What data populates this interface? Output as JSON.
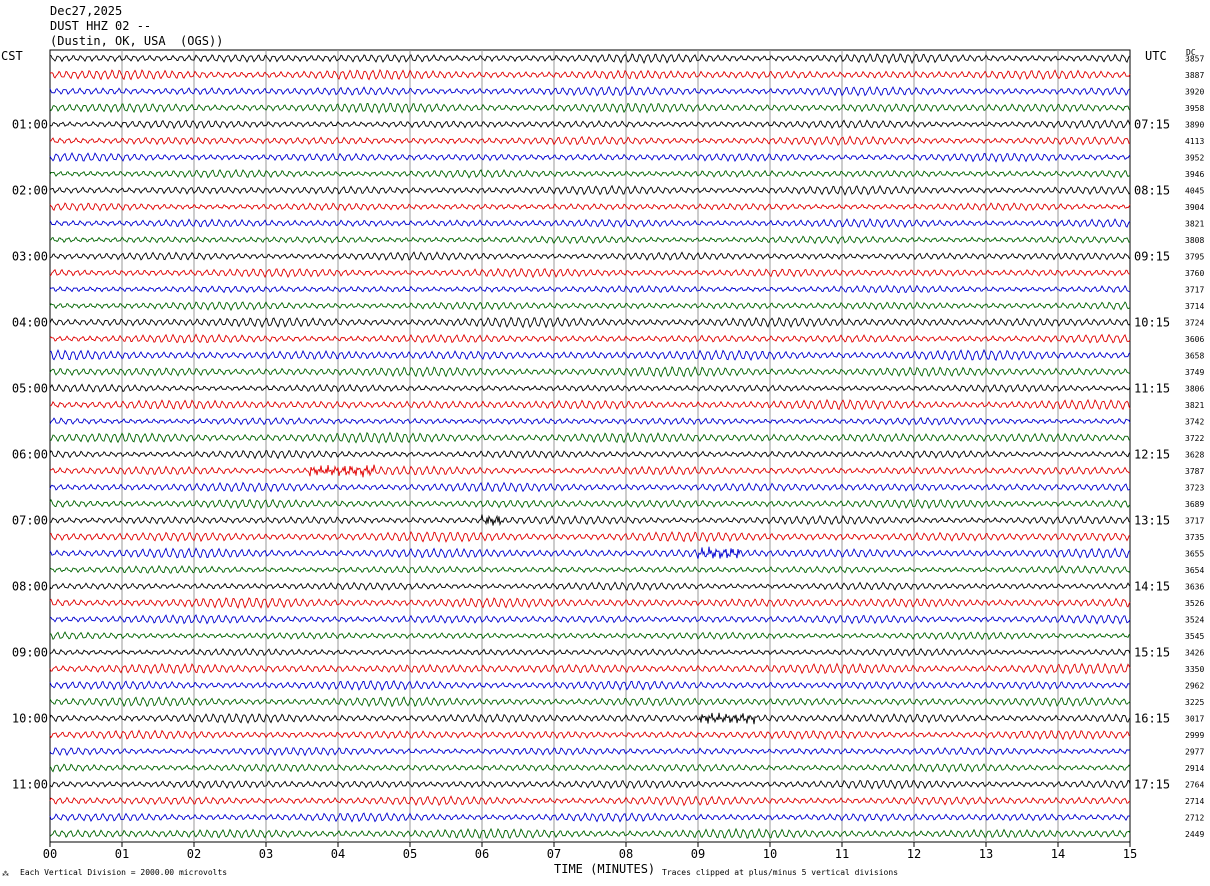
{
  "header": {
    "date": "Dec27,2025",
    "station": "DUST HHZ 02 --",
    "location": "(Dustin, OK, USA  (OGS))"
  },
  "left_zone_label": "CST",
  "right_zone_label": "UTC",
  "dc_label": "DC",
  "footer": {
    "scale_note": "Each Vertical Division = 2000.00 microvolts",
    "xlabel": "TIME (MINUTES)",
    "clip_note": "Traces clipped at plus/minus 5 vertical divisions"
  },
  "colors": {
    "trace_cycle": [
      "#000000",
      "#e00000",
      "#0000d0",
      "#006400"
    ],
    "grid": "#9a9a9a"
  },
  "chart_data": {
    "type": "line",
    "title": "",
    "x_ticks": [
      "00",
      "01",
      "02",
      "03",
      "04",
      "05",
      "06",
      "07",
      "08",
      "09",
      "10",
      "11",
      "12",
      "13",
      "14",
      "15"
    ],
    "xlim": [
      0,
      15
    ],
    "trace_minutes": 15,
    "trace_count": 48,
    "left_hour_labels": [
      "01:00",
      "02:00",
      "03:00",
      "04:00",
      "05:00",
      "06:00",
      "07:00",
      "08:00",
      "09:00",
      "10:00",
      "11:00"
    ],
    "right_hour_labels": [
      "07:15",
      "08:15",
      "09:15",
      "10:15",
      "11:15",
      "12:15",
      "13:15",
      "14:15",
      "15:15",
      "16:15",
      "17:15"
    ],
    "dc_offsets": [
      "3857",
      "3887",
      "3920",
      "3958",
      "3890",
      "4113",
      "3952",
      "3946",
      "4045",
      "3904",
      "3821",
      "3808",
      "3795",
      "3760",
      "3717",
      "3714",
      "3724",
      "3606",
      "3658",
      "3749",
      "3806",
      "3821",
      "3742",
      "3722",
      "3628",
      "3787",
      "3723",
      "3689",
      "3717",
      "3735",
      "3655",
      "3654",
      "3636",
      "3526",
      "3524",
      "3545",
      "3426",
      "3350",
      "2962",
      "3225",
      "3017",
      "2999",
      "2977",
      "2914",
      "2764",
      "2714",
      "2712",
      "2449"
    ],
    "events": [
      {
        "trace": 25,
        "start_min": 3.6,
        "end_min": 4.5,
        "note": "red-burst"
      },
      {
        "trace": 28,
        "start_min": 6.0,
        "end_min": 6.3,
        "note": "small-burst"
      },
      {
        "trace": 30,
        "start_min": 9.0,
        "end_min": 9.6,
        "note": "blue-burst"
      },
      {
        "trace": 40,
        "start_min": 9.0,
        "end_min": 9.8,
        "note": "black-burst"
      }
    ]
  }
}
